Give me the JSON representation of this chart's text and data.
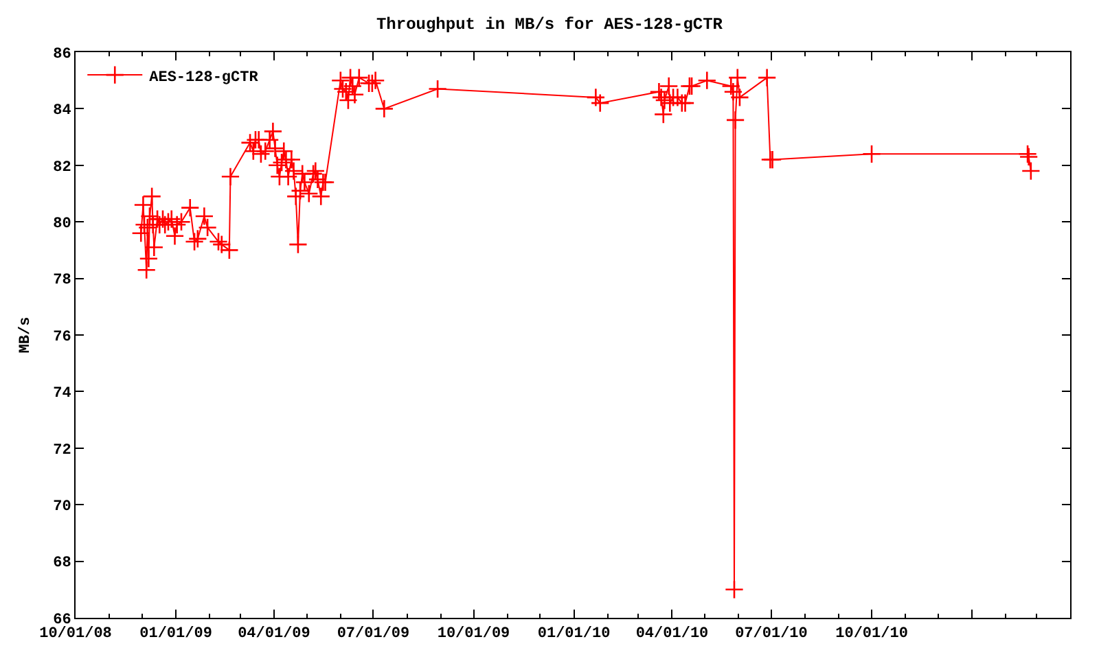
{
  "chart_data": {
    "type": "line",
    "title": "Throughput in MB/s for AES-128-gCTR",
    "ylabel": "MB/s",
    "x": [
      "2008-11-30",
      "2008-12-02",
      "2008-12-03",
      "2008-12-05",
      "2008-12-06",
      "2008-12-07",
      "2008-12-08",
      "2008-12-10",
      "2008-12-11",
      "2008-12-12",
      "2008-12-15",
      "2008-12-17",
      "2008-12-20",
      "2008-12-22",
      "2008-12-25",
      "2008-12-28",
      "2008-12-31",
      "2009-01-02",
      "2009-01-06",
      "2009-01-14",
      "2009-01-18",
      "2009-01-21",
      "2009-01-27",
      "2009-01-30",
      "2009-02-09",
      "2009-02-12",
      "2009-02-19",
      "2009-02-20",
      "2009-03-10",
      "2009-03-13",
      "2009-03-15",
      "2009-03-18",
      "2009-03-20",
      "2009-03-24",
      "2009-03-28",
      "2009-03-31",
      "2009-04-02",
      "2009-04-04",
      "2009-04-06",
      "2009-04-08",
      "2009-04-10",
      "2009-04-12",
      "2009-04-14",
      "2009-04-17",
      "2009-04-19",
      "2009-04-21",
      "2009-04-23",
      "2009-04-25",
      "2009-04-27",
      "2009-04-29",
      "2009-05-03",
      "2009-05-07",
      "2009-05-09",
      "2009-05-11",
      "2009-05-14",
      "2009-05-16",
      "2009-05-18",
      "2009-06-01",
      "2009-06-03",
      "2009-06-06",
      "2009-06-08",
      "2009-06-10",
      "2009-06-12",
      "2009-06-14",
      "2009-06-18",
      "2009-06-27",
      "2009-06-30",
      "2009-07-03",
      "2009-07-11",
      "2009-08-29",
      "2010-01-21",
      "2010-01-25",
      "2010-03-20",
      "2010-03-22",
      "2010-03-24",
      "2010-03-25",
      "2010-03-29",
      "2010-03-30",
      "2010-04-02",
      "2010-04-06",
      "2010-04-10",
      "2010-04-13",
      "2010-04-17",
      "2010-04-19",
      "2010-05-03",
      "2010-05-25",
      "2010-05-27",
      "2010-05-28",
      "2010-05-29",
      "2010-05-31",
      "2010-06-02",
      "2010-06-27",
      "2010-06-30",
      "2010-07-02",
      "2010-10-01",
      "2011-02-21",
      "2011-02-22",
      "2011-02-24"
    ],
    "series": [
      {
        "name": "AES-128-gCTR",
        "color": "#ff0000",
        "values": [
          79.6,
          80.6,
          79.9,
          78.3,
          79.8,
          78.7,
          80.2,
          80.9,
          79.9,
          79.1,
          80.1,
          79.9,
          80.1,
          79.9,
          80.0,
          80.1,
          79.5,
          79.9,
          80.0,
          80.5,
          79.3,
          79.4,
          80.2,
          79.8,
          79.3,
          79.2,
          79.0,
          81.6,
          82.8,
          82.5,
          82.9,
          82.9,
          82.4,
          82.5,
          82.9,
          83.2,
          82.6,
          82.0,
          81.6,
          82.1,
          82.5,
          82.2,
          81.6,
          82.2,
          81.8,
          80.9,
          79.2,
          81.1,
          81.7,
          81.4,
          81.0,
          81.7,
          81.8,
          81.5,
          80.9,
          81.4,
          81.4,
          85.0,
          84.7,
          84.6,
          84.3,
          85.1,
          84.8,
          84.5,
          85.1,
          84.9,
          84.9,
          85.0,
          84.0,
          84.7,
          84.4,
          84.2,
          84.6,
          84.4,
          83.8,
          84.3,
          84.8,
          84.2,
          84.4,
          84.4,
          84.2,
          84.2,
          84.8,
          84.8,
          85.0,
          84.8,
          84.6,
          67.0,
          83.6,
          85.1,
          84.4,
          85.1,
          82.2,
          82.2,
          82.4,
          82.4,
          82.3,
          81.8
        ]
      }
    ],
    "xlim": [
      "2008-10-01",
      "2011-04-01"
    ],
    "xticks": [
      {
        "value": "2008-10-01",
        "label": "10/01/08"
      },
      {
        "value": "2009-01-01",
        "label": "01/01/09"
      },
      {
        "value": "2009-04-01",
        "label": "04/01/09"
      },
      {
        "value": "2009-07-01",
        "label": "07/01/09"
      },
      {
        "value": "2009-10-01",
        "label": "10/01/09"
      },
      {
        "value": "2010-01-01",
        "label": "01/01/10"
      },
      {
        "value": "2010-04-01",
        "label": "04/01/10"
      },
      {
        "value": "2010-07-01",
        "label": "07/01/10"
      },
      {
        "value": "2010-10-01",
        "label": "10/01/10"
      },
      {
        "value": "2011-01-01",
        "label": null
      },
      {
        "value": "2011-04-01",
        "label": null
      }
    ],
    "ylim": [
      66,
      86
    ],
    "yticks": [
      66,
      68,
      70,
      72,
      74,
      76,
      78,
      80,
      82,
      84,
      86
    ],
    "grid": false,
    "legend": "top left",
    "marker": "cross",
    "line_style": "solid"
  }
}
